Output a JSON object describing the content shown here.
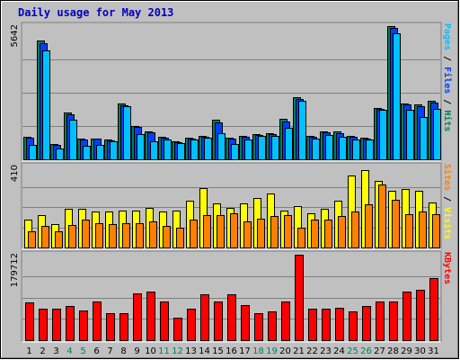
{
  "chart_data": {
    "type": "bar",
    "title": "Daily usage for May 2013",
    "days": [
      "1",
      "2",
      "3",
      "4",
      "5",
      "6",
      "7",
      "8",
      "9",
      "10",
      "11",
      "12",
      "13",
      "14",
      "15",
      "16",
      "17",
      "18",
      "19",
      "20",
      "21",
      "22",
      "23",
      "24",
      "25",
      "26",
      "27",
      "28",
      "29",
      "30",
      "31"
    ],
    "weekend_days": [
      "4",
      "5",
      "11",
      "12",
      "18",
      "19",
      "25",
      "26"
    ],
    "colors": {
      "background": "#c0c0c0",
      "border": "#808080",
      "title": "#0000c0",
      "hits": "#00805c",
      "files": "#0040ff",
      "pages": "#00c0ff",
      "visits": "#ffff00",
      "sites": "#ff8000",
      "kbytes": "#ff0000",
      "weekday_label": "#000000",
      "weekend_label": "#00805c"
    },
    "panels": [
      {
        "id": "hits",
        "max_label": "5642",
        "ymax": 5642,
        "legend": [
          {
            "text": "Hits",
            "color_key": "hits"
          },
          {
            "text": "Files",
            "color_key": "files"
          },
          {
            "text": "Pages",
            "color_key": "pages"
          }
        ],
        "series": [
          {
            "name": "Hits",
            "color_key": "hits",
            "values": [
              940,
              5020,
              640,
              2000,
              880,
              880,
              820,
              2360,
              1420,
              1200,
              960,
              750,
              900,
              1000,
              1660,
              920,
              980,
              1080,
              1100,
              1700,
              2620,
              980,
              1180,
              1170,
              1000,
              910,
              2190,
              5642,
              2380,
              2320,
              2490
            ]
          },
          {
            "name": "Files",
            "color_key": "files",
            "values": [
              900,
              4920,
              620,
              1920,
              840,
              860,
              800,
              2300,
              1360,
              1150,
              920,
              730,
              880,
              960,
              1580,
              880,
              940,
              1040,
              1060,
              1620,
              2560,
              940,
              1140,
              1120,
              960,
              880,
              2140,
              5560,
              2320,
              2250,
              2420
            ]
          },
          {
            "name": "Pages",
            "color_key": "pages",
            "values": [
              620,
              4610,
              440,
              1680,
              580,
              620,
              760,
              2240,
              1060,
              760,
              840,
              680,
              830,
              910,
              1120,
              660,
              840,
              1000,
              1000,
              1350,
              2470,
              890,
              1030,
              970,
              830,
              820,
              2100,
              5340,
              2080,
              1810,
              2120
            ]
          }
        ]
      },
      {
        "id": "visits",
        "max_label": "410",
        "ymax": 410,
        "legend": [
          {
            "text": "Visits",
            "color_key": "visits"
          },
          {
            "text": "Sites",
            "color_key": "sites"
          }
        ],
        "series": [
          {
            "name": "Visits",
            "color_key": "visits",
            "values": [
              140,
              165,
              120,
              195,
              195,
              180,
              180,
              185,
              185,
              200,
              180,
              185,
              235,
              300,
              225,
              200,
              225,
              250,
              275,
              185,
              210,
              175,
              195,
              235,
              365,
              390,
              335,
              285,
              295,
              285,
              230
            ]
          },
          {
            "name": "Sites",
            "color_key": "sites",
            "values": [
              80,
              110,
              80,
              115,
              140,
              125,
              120,
              125,
              125,
              130,
              110,
              100,
              140,
              165,
              165,
              175,
              130,
              145,
              160,
              165,
              100,
              140,
              140,
              160,
              180,
              220,
              320,
              240,
              170,
              180,
              170
            ]
          }
        ]
      },
      {
        "id": "kbytes",
        "max_label": "179712",
        "ymax": 179712,
        "legend": [
          {
            "text": "KBytes",
            "color_key": "kbytes"
          }
        ],
        "series": [
          {
            "name": "KBytes",
            "color_key": "kbytes",
            "values": [
              80000,
              66000,
              66000,
              71000,
              62000,
              81000,
              56000,
              56000,
              98000,
              103000,
              81000,
              48000,
              66000,
              96000,
              81000,
              96000,
              73000,
              56000,
              61000,
              81000,
              179712,
              66000,
              66000,
              68000,
              61000,
              71000,
              82000,
              81000,
              103000,
              106000,
              131000
            ]
          }
        ]
      }
    ]
  }
}
